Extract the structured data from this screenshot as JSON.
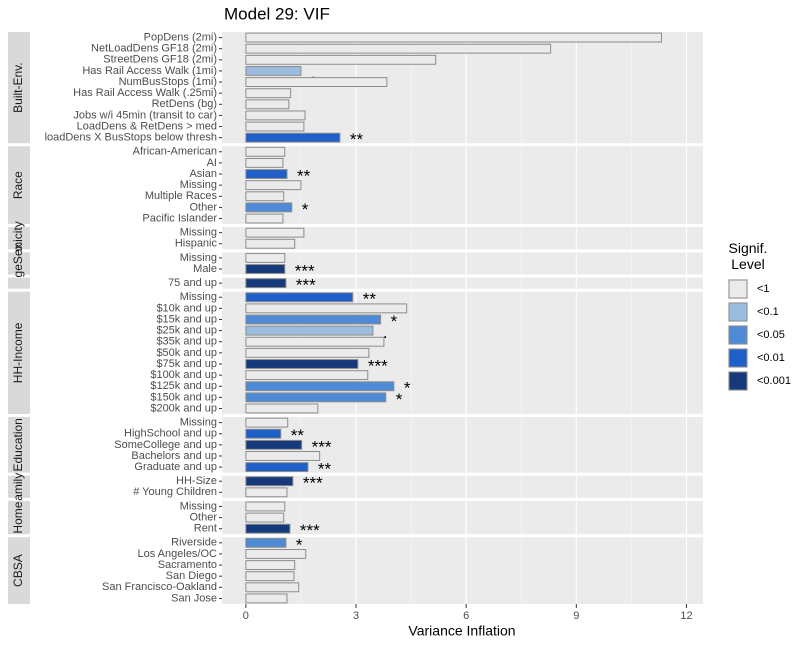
{
  "chart_data": {
    "type": "bar",
    "title": "Model 29: VIF",
    "x_label": "Variance Inflation",
    "xlim": [
      -0.65,
      12.45
    ],
    "xticks": [
      0,
      3,
      6,
      9,
      12
    ],
    "grid": true,
    "legend": {
      "title": "Signif. Level",
      "position": "right",
      "entries": [
        {
          "name": "<1",
          "color": "#ebebeb"
        },
        {
          "name": "<0.1",
          "color": "#9dbde0"
        },
        {
          "name": "<0.05",
          "color": "#4f8ad6"
        },
        {
          "name": "<0.01",
          "color": "#1f5fc8"
        },
        {
          "name": "<0.001",
          "color": "#15397a"
        }
      ]
    },
    "panels": [
      {
        "strip": "Built-Env.",
        "categories": [
          "PopDens (2mi)",
          "NetLoadDens GF18 (2mi)",
          "StreetDens GF18 (2mi)",
          "Has Rail Access Walk (1mi)",
          "NumBusStops (1mi)",
          "Has Rail Access Walk (.25mi)",
          "RetDens (bg)",
          "Jobs w/i 45min (transit to car)",
          "LoadDens & RetDens > med",
          "loadDens X BusStops below thresh"
        ],
        "values": [
          11.32,
          8.3,
          5.17,
          1.5,
          3.84,
          1.22,
          1.17,
          1.61,
          1.58,
          2.56
        ],
        "colors": [
          "#ebebeb",
          "#ebebeb",
          "#ebebeb",
          "#9dbde0",
          "#ebebeb",
          "#ebebeb",
          "#ebebeb",
          "#ebebeb",
          "#ebebeb",
          "#1f5fc8"
        ],
        "annotations": [
          null,
          null,
          null,
          ".",
          null,
          null,
          null,
          null,
          null,
          "**"
        ]
      },
      {
        "strip": "Race",
        "categories": [
          "African-American",
          "AI",
          "Asian",
          "Missing",
          "Multiple Races",
          "Other",
          "Pacific Islander"
        ],
        "values": [
          1.06,
          1.01,
          1.12,
          1.5,
          1.03,
          1.25,
          1.01
        ],
        "colors": [
          "#ebebeb",
          "#ebebeb",
          "#1f5fc8",
          "#ebebeb",
          "#ebebeb",
          "#4f8ad6",
          "#ebebeb"
        ],
        "annotations": [
          null,
          null,
          "**",
          null,
          null,
          "*",
          null
        ]
      },
      {
        "strip": "hnicity",
        "categories": [
          "Missing",
          "Hispanic"
        ],
        "values": [
          1.58,
          1.33
        ],
        "colors": [
          "#ebebeb",
          "#ebebeb"
        ],
        "annotations": [
          null,
          null
        ]
      },
      {
        "strip": "vgeSex",
        "categories": [
          "Missing",
          "Male"
        ],
        "values": [
          1.06,
          1.06
        ],
        "colors": [
          "#ebebeb",
          "#15397a"
        ],
        "annotations": [
          null,
          "***"
        ]
      },
      {
        "strip": null,
        "categories": [
          "75 and up"
        ],
        "values": [
          1.09
        ],
        "colors": [
          "#15397a"
        ],
        "annotations": [
          "***"
        ]
      },
      {
        "strip": "HH-Income",
        "categories": [
          "Missing",
          "$10k and up",
          "$15k and up",
          "$25k and up",
          "$35k and up",
          "$50k and up",
          "$75k and up",
          "$100k and up",
          "$125k and up",
          "$150k and up",
          "$200k and up"
        ],
        "values": [
          2.91,
          4.38,
          3.67,
          3.46,
          3.76,
          3.35,
          3.05,
          3.32,
          4.03,
          3.81,
          1.96
        ],
        "colors": [
          "#1f5fc8",
          "#ebebeb",
          "#4f8ad6",
          "#9dbde0",
          "#ebebeb",
          "#ebebeb",
          "#15397a",
          "#ebebeb",
          "#4f8ad6",
          "#4f8ad6",
          "#ebebeb"
        ],
        "annotations": [
          "**",
          null,
          "*",
          ".",
          null,
          null,
          "***",
          null,
          "*",
          "*",
          null
        ]
      },
      {
        "strip": "Education",
        "categories": [
          "Missing",
          "HighSchool and up",
          "SomeCollege and up",
          "Bachelors and up",
          "Graduate and up"
        ],
        "values": [
          1.14,
          0.95,
          1.52,
          2.01,
          1.69
        ],
        "colors": [
          "#ebebeb",
          "#1f5fc8",
          "#15397a",
          "#ebebeb",
          "#1f5fc8"
        ],
        "annotations": [
          null,
          "**",
          "***",
          null,
          "**"
        ]
      },
      {
        "strip": "amily",
        "categories": [
          "HH-Size",
          "# Young Children"
        ],
        "values": [
          1.28,
          1.12
        ],
        "colors": [
          "#15397a",
          "#ebebeb"
        ],
        "annotations": [
          "***",
          null
        ]
      },
      {
        "strip": "Home",
        "categories": [
          "Missing",
          "Other",
          "Rent"
        ],
        "values": [
          1.06,
          1.03,
          1.2
        ],
        "colors": [
          "#ebebeb",
          "#ebebeb",
          "#15397a"
        ],
        "annotations": [
          null,
          null,
          "***"
        ]
      },
      {
        "strip": "CBSA",
        "categories": [
          "Riverside",
          "Los Angeles/OC",
          "Sacramento",
          "San Diego",
          "San Francisco-Oakland",
          "San Jose"
        ],
        "values": [
          1.09,
          1.63,
          1.33,
          1.31,
          1.44,
          1.12
        ],
        "colors": [
          "#4f8ad6",
          "#ebebeb",
          "#ebebeb",
          "#ebebeb",
          "#ebebeb",
          "#ebebeb"
        ],
        "annotations": [
          "*",
          null,
          null,
          null,
          null,
          null
        ]
      }
    ]
  }
}
